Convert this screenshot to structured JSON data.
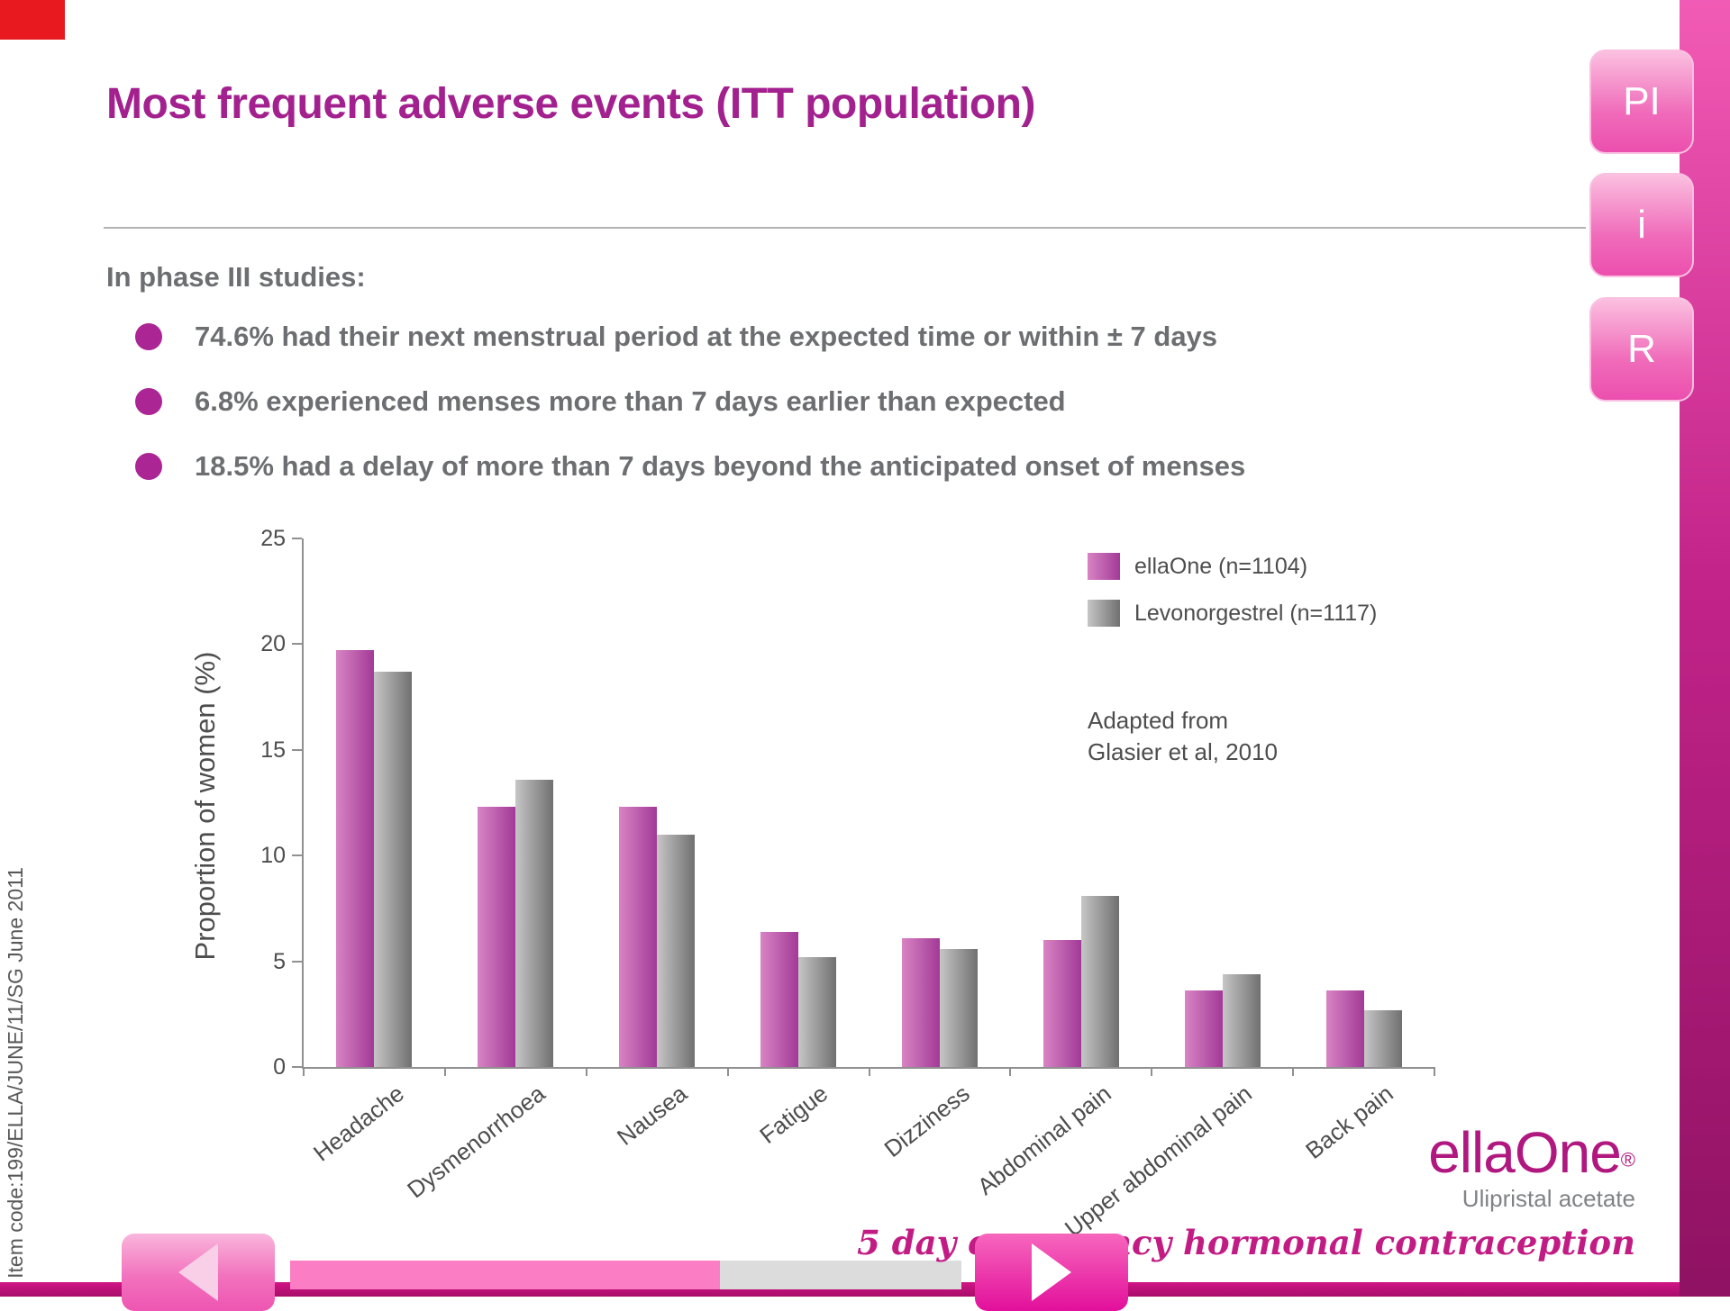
{
  "page": {
    "title": "Most frequent adverse events (ITT population)",
    "item_code": "Item code:199/ELLA/JUNE/11/SG June 2011"
  },
  "intro": {
    "heading": "In phase III studies:",
    "bullets": [
      "74.6% had their next menstrual period at the expected time or within ± 7 days",
      "6.8% experienced menses more than 7 days earlier than expected",
      "18.5% had a delay of more than 7 days beyond the anticipated onset of menses"
    ]
  },
  "side_tabs": [
    {
      "label": "PI"
    },
    {
      "label": "i"
    },
    {
      "label": "R"
    }
  ],
  "chart_data": {
    "type": "bar",
    "title": "",
    "ylabel": "Proportion of women (%)",
    "xlabel": "",
    "ylim": [
      0,
      25
    ],
    "yticks": [
      0,
      5,
      10,
      15,
      20,
      25
    ],
    "grid": false,
    "legend_position": "top-right",
    "categories": [
      "Headache",
      "Dysmenorrhoea",
      "Nausea",
      "Fatigue",
      "Dizziness",
      "Abdominal pain",
      "Upper abdominal pain",
      "Back pain"
    ],
    "series": [
      {
        "name": "ellaOne (n=1104)",
        "color_start": "#d884c4",
        "color_end": "#a23a97",
        "values": [
          19.7,
          12.3,
          12.3,
          6.4,
          6.1,
          6.0,
          3.6,
          3.6
        ]
      },
      {
        "name": "Levonorgestrel (n=1117)",
        "color_start": "#c6c6c6",
        "color_end": "#707070",
        "values": [
          18.7,
          13.6,
          11.0,
          5.2,
          5.6,
          8.1,
          4.4,
          2.7
        ]
      }
    ],
    "annotation_lines": [
      "Adapted from",
      "Glasier et al, 2010"
    ]
  },
  "brand": {
    "logo": "ellaOne",
    "registered": "®",
    "subtitle": "Ulipristal acetate",
    "tagline": "5 day emergency hormonal contraception"
  },
  "nav": {
    "progress_percent": 64,
    "prev_icon": "left-arrow",
    "next_icon": "right-arrow"
  },
  "colors": {
    "accent": "#a3218f",
    "red_corner": "#e8191f",
    "progress_pink": "#fb7dc4"
  }
}
